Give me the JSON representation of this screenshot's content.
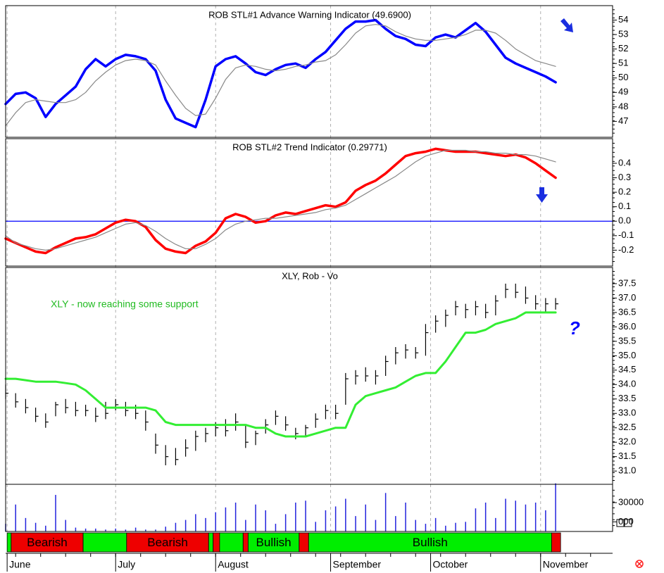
{
  "chart_data": [
    {
      "type": "line",
      "title": "ROB STL#1 Advance Warning Indicator (49.6900)",
      "x": [
        0,
        2,
        4,
        6,
        8,
        10,
        12,
        14,
        16,
        18,
        20,
        22,
        24,
        26,
        28,
        30,
        32,
        34,
        36,
        38,
        40,
        42,
        44,
        46,
        48,
        50,
        52,
        54,
        56,
        58,
        60,
        62,
        64,
        66,
        68,
        70,
        72,
        74,
        76,
        78,
        80,
        82,
        84,
        86,
        88,
        90,
        92,
        94,
        96,
        98,
        100,
        102,
        104,
        106,
        108,
        110
      ],
      "series": [
        {
          "color": "#0000ff",
          "width": 3.5,
          "values": [
            48.2,
            48.9,
            49.0,
            48.6,
            47.3,
            48.2,
            48.8,
            49.4,
            50.6,
            51.3,
            50.8,
            51.3,
            51.6,
            51.5,
            51.3,
            50.5,
            48.5,
            47.2,
            46.9,
            46.6,
            48.5,
            50.8,
            51.3,
            51.5,
            51.0,
            50.4,
            50.2,
            50.6,
            50.9,
            51.0,
            50.7,
            51.3,
            51.8,
            52.6,
            53.4,
            53.9,
            53.9,
            54.0,
            53.4,
            52.9,
            52.7,
            52.3,
            52.2,
            52.8,
            53.0,
            52.8,
            53.3,
            53.8,
            53.2,
            52.3,
            51.4,
            51.0,
            50.7,
            50.4,
            50.1,
            49.7
          ]
        },
        {
          "color": "#888888",
          "width": 1.2,
          "values": [
            46.7,
            47.6,
            48.3,
            48.5,
            48.4,
            48.3,
            48.3,
            48.5,
            49.0,
            49.8,
            50.4,
            50.9,
            51.2,
            51.3,
            51.2,
            50.9,
            49.8,
            48.8,
            47.9,
            47.4,
            47.5,
            48.6,
            49.9,
            50.7,
            50.9,
            50.8,
            50.6,
            50.5,
            50.6,
            50.8,
            50.9,
            51.1,
            51.2,
            51.6,
            52.3,
            53.1,
            53.6,
            53.7,
            53.6,
            53.2,
            52.9,
            52.7,
            52.6,
            52.6,
            52.7,
            52.8,
            53.0,
            53.3,
            53.3,
            53.1,
            52.6,
            52.0,
            51.6,
            51.2,
            51.0,
            50.8
          ]
        }
      ],
      "ylim": [
        45.9,
        55.0
      ],
      "yticks": [
        47,
        48,
        49,
        50,
        51,
        52,
        53,
        54
      ]
    },
    {
      "type": "line",
      "title": "ROB STL#2 Trend Indicator (0.29771)",
      "x": [
        0,
        2,
        4,
        6,
        8,
        10,
        12,
        14,
        16,
        18,
        20,
        22,
        24,
        26,
        28,
        30,
        32,
        34,
        36,
        38,
        40,
        42,
        44,
        46,
        48,
        50,
        52,
        54,
        56,
        58,
        60,
        62,
        64,
        66,
        68,
        70,
        72,
        74,
        76,
        78,
        80,
        82,
        84,
        86,
        88,
        90,
        92,
        94,
        96,
        98,
        100,
        102,
        104,
        106,
        108,
        110
      ],
      "series": [
        {
          "color": "#ff0000",
          "width": 3.5,
          "values": [
            -0.12,
            -0.15,
            -0.18,
            -0.21,
            -0.22,
            -0.18,
            -0.15,
            -0.12,
            -0.11,
            -0.09,
            -0.05,
            -0.01,
            0.01,
            0.0,
            -0.04,
            -0.13,
            -0.19,
            -0.21,
            -0.22,
            -0.17,
            -0.14,
            -0.08,
            0.02,
            0.05,
            0.03,
            -0.01,
            0.0,
            0.04,
            0.06,
            0.05,
            0.07,
            0.09,
            0.11,
            0.1,
            0.13,
            0.21,
            0.25,
            0.28,
            0.33,
            0.39,
            0.45,
            0.47,
            0.48,
            0.5,
            0.49,
            0.48,
            0.48,
            0.48,
            0.47,
            0.46,
            0.45,
            0.46,
            0.44,
            0.4,
            0.35,
            0.3
          ]
        },
        {
          "color": "#888888",
          "width": 1.2,
          "values": [
            -0.1,
            -0.15,
            -0.17,
            -0.19,
            -0.2,
            -0.19,
            -0.17,
            -0.15,
            -0.13,
            -0.11,
            -0.08,
            -0.05,
            -0.02,
            -0.01,
            -0.03,
            -0.07,
            -0.12,
            -0.16,
            -0.19,
            -0.19,
            -0.16,
            -0.12,
            -0.06,
            -0.02,
            0.0,
            0.01,
            0.02,
            0.02,
            0.03,
            0.04,
            0.05,
            0.06,
            0.08,
            0.09,
            0.11,
            0.15,
            0.19,
            0.23,
            0.27,
            0.31,
            0.36,
            0.41,
            0.45,
            0.47,
            0.49,
            0.49,
            0.49,
            0.48,
            0.48,
            0.47,
            0.47,
            0.46,
            0.46,
            0.45,
            0.43,
            0.41
          ]
        }
      ],
      "reference_line": {
        "value": 0,
        "color": "#0000ff"
      },
      "ylim": [
        -0.31,
        0.57
      ],
      "yticks": [
        0.4,
        0.3,
        0.2,
        0.1,
        {
          "value": 0,
          "label": "0.0"
        },
        -0.1,
        -0.2
      ]
    },
    {
      "type": "ohlc",
      "title": "XLY, Rob - Vo",
      "x": [
        0,
        2,
        4,
        6,
        8,
        10,
        12,
        14,
        16,
        18,
        20,
        22,
        24,
        26,
        28,
        30,
        32,
        34,
        36,
        38,
        40,
        42,
        44,
        46,
        48,
        50,
        52,
        54,
        56,
        58,
        60,
        62,
        64,
        66,
        68,
        70,
        72,
        74,
        76,
        78,
        80,
        82,
        84,
        86,
        88,
        90,
        92,
        94,
        96,
        98,
        100,
        102,
        104,
        106,
        108,
        110
      ],
      "high": [
        34.0,
        33.7,
        33.5,
        33.2,
        33.0,
        33.4,
        33.5,
        33.4,
        33.3,
        33.2,
        33.4,
        33.5,
        33.4,
        33.3,
        33.1,
        32.3,
        31.9,
        31.8,
        32.1,
        32.4,
        32.5,
        32.7,
        32.8,
        33.0,
        32.6,
        32.4,
        32.8,
        33.1,
        32.9,
        32.5,
        32.6,
        33.0,
        33.3,
        33.3,
        34.4,
        34.5,
        34.6,
        34.5,
        35.0,
        35.3,
        35.4,
        35.3,
        36.1,
        36.4,
        36.6,
        36.9,
        36.8,
        36.9,
        36.8,
        37.1,
        37.5,
        37.5,
        37.4,
        37.1,
        37.0,
        37.0
      ],
      "low": [
        33.5,
        33.2,
        33.0,
        32.7,
        32.5,
        32.9,
        33.0,
        32.9,
        32.9,
        32.7,
        32.8,
        33.1,
        32.9,
        32.8,
        32.4,
        31.6,
        31.2,
        31.2,
        31.5,
        31.7,
        32.0,
        32.2,
        32.2,
        32.4,
        31.8,
        31.9,
        32.3,
        32.6,
        32.4,
        32.1,
        32.2,
        32.5,
        32.8,
        32.8,
        33.3,
        34.0,
        34.1,
        34.0,
        34.3,
        34.7,
        34.9,
        34.9,
        35.0,
        35.8,
        36.0,
        36.4,
        36.3,
        36.4,
        36.3,
        36.4,
        37.0,
        37.0,
        36.8,
        36.6,
        36.5,
        36.6
      ],
      "close": [
        33.7,
        33.4,
        33.2,
        32.9,
        32.7,
        33.3,
        33.2,
        33.1,
        33.1,
        32.9,
        33.0,
        33.3,
        33.1,
        33.0,
        32.7,
        31.9,
        31.5,
        31.4,
        31.8,
        32.2,
        32.3,
        32.5,
        32.4,
        32.7,
        32.0,
        32.3,
        32.6,
        32.9,
        32.6,
        32.3,
        32.5,
        32.8,
        33.1,
        33.0,
        34.2,
        34.3,
        34.3,
        34.3,
        34.8,
        35.1,
        35.2,
        35.1,
        35.8,
        36.2,
        36.4,
        36.7,
        36.6,
        36.7,
        36.5,
        36.9,
        37.3,
        37.2,
        37.0,
        36.8,
        36.8,
        36.8
      ],
      "bar_color": "#000000",
      "series": [
        {
          "color": "#33ee33",
          "width": 3,
          "values": [
            34.2,
            34.2,
            34.15,
            34.1,
            34.1,
            34.1,
            34.05,
            34.0,
            33.8,
            33.5,
            33.2,
            33.2,
            33.2,
            33.2,
            33.2,
            33.1,
            32.7,
            32.6,
            32.6,
            32.6,
            32.6,
            32.6,
            32.6,
            32.6,
            32.6,
            32.5,
            32.5,
            32.3,
            32.2,
            32.2,
            32.2,
            32.3,
            32.4,
            32.5,
            32.5,
            33.3,
            33.6,
            33.7,
            33.8,
            33.9,
            34.1,
            34.3,
            34.4,
            34.4,
            34.8,
            35.3,
            35.8,
            35.8,
            35.9,
            36.1,
            36.2,
            36.3,
            36.5,
            36.5,
            36.5,
            36.5
          ]
        }
      ],
      "annotations": [
        {
          "text": "XLY - now reaching some support",
          "color": "#22bb22"
        },
        {
          "text": "?",
          "color": "#0000ff"
        }
      ],
      "ylim": [
        30.54,
        38.06
      ],
      "yticks": [
        {
          "value": 31,
          "label": "31.0"
        },
        31.5,
        {
          "value": 32,
          "label": "32.0"
        },
        32.5,
        {
          "value": 33,
          "label": "33.0"
        },
        33.5,
        {
          "value": 34,
          "label": "34.0"
        },
        34.5,
        {
          "value": 35,
          "label": "35.0"
        },
        35.5,
        {
          "value": 36,
          "label": "36.0"
        },
        36.5,
        {
          "value": 37,
          "label": "37.0"
        },
        37.5
      ]
    },
    {
      "type": "bar",
      "x": [
        0,
        2,
        4,
        6,
        8,
        10,
        12,
        14,
        16,
        18,
        20,
        22,
        24,
        26,
        28,
        30,
        32,
        34,
        36,
        38,
        40,
        42,
        44,
        46,
        48,
        50,
        52,
        54,
        56,
        58,
        60,
        62,
        64,
        66,
        68,
        70,
        72,
        74,
        76,
        78,
        80,
        82,
        84,
        86,
        88,
        90,
        92,
        94,
        96,
        98,
        100,
        102,
        104,
        106,
        108,
        110
      ],
      "values": [
        8000,
        28000,
        14000,
        9000,
        6000,
        38000,
        12000,
        4000,
        3000,
        3000,
        2000,
        3000,
        2000,
        4000,
        2000,
        2000,
        5000,
        9000,
        12000,
        18000,
        14000,
        20000,
        25000,
        30000,
        12000,
        28000,
        22000,
        8000,
        18000,
        30000,
        32000,
        10000,
        22000,
        26000,
        34000,
        16000,
        28000,
        12000,
        40000,
        16000,
        30000,
        12000,
        8000,
        14000,
        6000,
        9000,
        10000,
        24000,
        30000,
        14000,
        34000,
        32000,
        28000,
        30000,
        22000,
        50000
      ],
      "color": "#2222dd",
      "ylim": [
        0,
        49000
      ],
      "yticks": [
        30000,
        {
          "value": 10000,
          "label": "000"
        }
      ]
    },
    {
      "type": "regime",
      "segments": [
        {
          "start": 0.3,
          "end": 1.1,
          "color": "#00ee00"
        },
        {
          "start": 1.1,
          "end": 15.5,
          "color": "#ee0000",
          "label": "Bearish"
        },
        {
          "start": 15.5,
          "end": 24.2,
          "color": "#00ee00"
        },
        {
          "start": 24.2,
          "end": 40.6,
          "color": "#ee0000",
          "label": "Bearish"
        },
        {
          "start": 40.6,
          "end": 41.5,
          "color": "#00ee00"
        },
        {
          "start": 41.5,
          "end": 42.8,
          "color": "#ee0000"
        },
        {
          "start": 42.8,
          "end": 47.5,
          "color": "#00ee00"
        },
        {
          "start": 47.5,
          "end": 48.5,
          "color": "#ee0000"
        },
        {
          "start": 48.5,
          "end": 58.7,
          "color": "#00ee00",
          "label": "Bullish"
        },
        {
          "start": 58.7,
          "end": 60.6,
          "color": "#ee0000"
        },
        {
          "start": 60.6,
          "end": 109.2,
          "color": "#00ee00",
          "label": "Bullish"
        },
        {
          "start": 109.2,
          "end": 111,
          "color": "#ee0000"
        }
      ],
      "xlim": [
        0,
        121.4
      ],
      "xticks": [
        {
          "value": 0.3,
          "label": "June"
        },
        {
          "value": 22,
          "label": "July"
        },
        {
          "value": 42,
          "label": "August"
        },
        {
          "value": 65,
          "label": "September"
        },
        {
          "value": 85,
          "label": "October"
        },
        {
          "value": 107,
          "label": "November"
        }
      ]
    }
  ]
}
